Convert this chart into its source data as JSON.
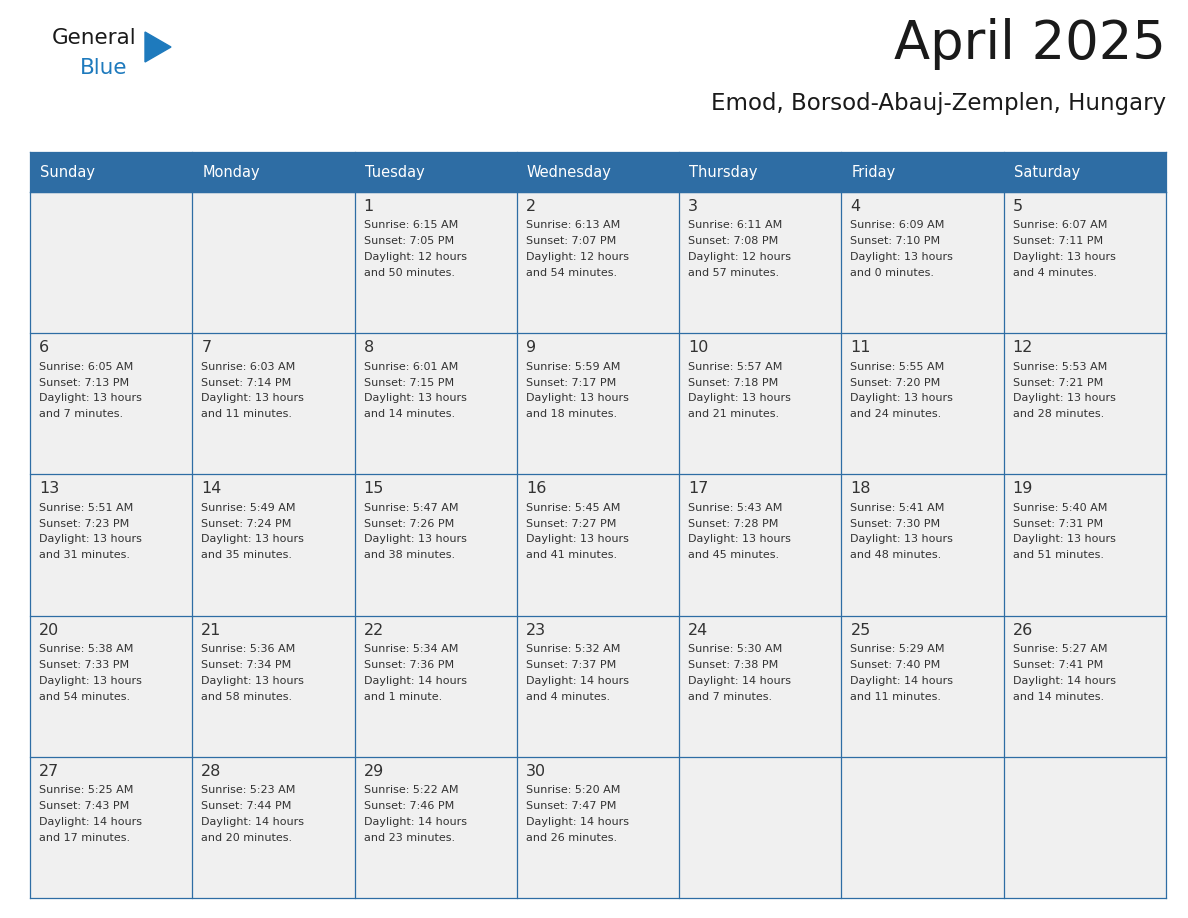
{
  "title": "April 2025",
  "subtitle": "Emod, Borsod-Abauj-Zemplen, Hungary",
  "header_bg_color": "#2e6da4",
  "header_text_color": "#ffffff",
  "cell_bg_color": "#f0f0f0",
  "title_color": "#1a1a1a",
  "subtitle_color": "#1a1a1a",
  "day_names": [
    "Sunday",
    "Monday",
    "Tuesday",
    "Wednesday",
    "Thursday",
    "Friday",
    "Saturday"
  ],
  "days": [
    {
      "day": 1,
      "col": 2,
      "row": 0,
      "sunrise": "6:15 AM",
      "sunset": "7:05 PM",
      "daylight_hrs": "12",
      "daylight_min": "50 minutes"
    },
    {
      "day": 2,
      "col": 3,
      "row": 0,
      "sunrise": "6:13 AM",
      "sunset": "7:07 PM",
      "daylight_hrs": "12",
      "daylight_min": "54 minutes"
    },
    {
      "day": 3,
      "col": 4,
      "row": 0,
      "sunrise": "6:11 AM",
      "sunset": "7:08 PM",
      "daylight_hrs": "12",
      "daylight_min": "57 minutes"
    },
    {
      "day": 4,
      "col": 5,
      "row": 0,
      "sunrise": "6:09 AM",
      "sunset": "7:10 PM",
      "daylight_hrs": "13",
      "daylight_min": "0 minutes"
    },
    {
      "day": 5,
      "col": 6,
      "row": 0,
      "sunrise": "6:07 AM",
      "sunset": "7:11 PM",
      "daylight_hrs": "13",
      "daylight_min": "4 minutes"
    },
    {
      "day": 6,
      "col": 0,
      "row": 1,
      "sunrise": "6:05 AM",
      "sunset": "7:13 PM",
      "daylight_hrs": "13",
      "daylight_min": "7 minutes"
    },
    {
      "day": 7,
      "col": 1,
      "row": 1,
      "sunrise": "6:03 AM",
      "sunset": "7:14 PM",
      "daylight_hrs": "13",
      "daylight_min": "11 minutes"
    },
    {
      "day": 8,
      "col": 2,
      "row": 1,
      "sunrise": "6:01 AM",
      "sunset": "7:15 PM",
      "daylight_hrs": "13",
      "daylight_min": "14 minutes"
    },
    {
      "day": 9,
      "col": 3,
      "row": 1,
      "sunrise": "5:59 AM",
      "sunset": "7:17 PM",
      "daylight_hrs": "13",
      "daylight_min": "18 minutes"
    },
    {
      "day": 10,
      "col": 4,
      "row": 1,
      "sunrise": "5:57 AM",
      "sunset": "7:18 PM",
      "daylight_hrs": "13",
      "daylight_min": "21 minutes"
    },
    {
      "day": 11,
      "col": 5,
      "row": 1,
      "sunrise": "5:55 AM",
      "sunset": "7:20 PM",
      "daylight_hrs": "13",
      "daylight_min": "24 minutes"
    },
    {
      "day": 12,
      "col": 6,
      "row": 1,
      "sunrise": "5:53 AM",
      "sunset": "7:21 PM",
      "daylight_hrs": "13",
      "daylight_min": "28 minutes"
    },
    {
      "day": 13,
      "col": 0,
      "row": 2,
      "sunrise": "5:51 AM",
      "sunset": "7:23 PM",
      "daylight_hrs": "13",
      "daylight_min": "31 minutes"
    },
    {
      "day": 14,
      "col": 1,
      "row": 2,
      "sunrise": "5:49 AM",
      "sunset": "7:24 PM",
      "daylight_hrs": "13",
      "daylight_min": "35 minutes"
    },
    {
      "day": 15,
      "col": 2,
      "row": 2,
      "sunrise": "5:47 AM",
      "sunset": "7:26 PM",
      "daylight_hrs": "13",
      "daylight_min": "38 minutes"
    },
    {
      "day": 16,
      "col": 3,
      "row": 2,
      "sunrise": "5:45 AM",
      "sunset": "7:27 PM",
      "daylight_hrs": "13",
      "daylight_min": "41 minutes"
    },
    {
      "day": 17,
      "col": 4,
      "row": 2,
      "sunrise": "5:43 AM",
      "sunset": "7:28 PM",
      "daylight_hrs": "13",
      "daylight_min": "45 minutes"
    },
    {
      "day": 18,
      "col": 5,
      "row": 2,
      "sunrise": "5:41 AM",
      "sunset": "7:30 PM",
      "daylight_hrs": "13",
      "daylight_min": "48 minutes"
    },
    {
      "day": 19,
      "col": 6,
      "row": 2,
      "sunrise": "5:40 AM",
      "sunset": "7:31 PM",
      "daylight_hrs": "13",
      "daylight_min": "51 minutes"
    },
    {
      "day": 20,
      "col": 0,
      "row": 3,
      "sunrise": "5:38 AM",
      "sunset": "7:33 PM",
      "daylight_hrs": "13",
      "daylight_min": "54 minutes"
    },
    {
      "day": 21,
      "col": 1,
      "row": 3,
      "sunrise": "5:36 AM",
      "sunset": "7:34 PM",
      "daylight_hrs": "13",
      "daylight_min": "58 minutes"
    },
    {
      "day": 22,
      "col": 2,
      "row": 3,
      "sunrise": "5:34 AM",
      "sunset": "7:36 PM",
      "daylight_hrs": "14",
      "daylight_min": "1 minute"
    },
    {
      "day": 23,
      "col": 3,
      "row": 3,
      "sunrise": "5:32 AM",
      "sunset": "7:37 PM",
      "daylight_hrs": "14",
      "daylight_min": "4 minutes"
    },
    {
      "day": 24,
      "col": 4,
      "row": 3,
      "sunrise": "5:30 AM",
      "sunset": "7:38 PM",
      "daylight_hrs": "14",
      "daylight_min": "7 minutes"
    },
    {
      "day": 25,
      "col": 5,
      "row": 3,
      "sunrise": "5:29 AM",
      "sunset": "7:40 PM",
      "daylight_hrs": "14",
      "daylight_min": "11 minutes"
    },
    {
      "day": 26,
      "col": 6,
      "row": 3,
      "sunrise": "5:27 AM",
      "sunset": "7:41 PM",
      "daylight_hrs": "14",
      "daylight_min": "14 minutes"
    },
    {
      "day": 27,
      "col": 0,
      "row": 4,
      "sunrise": "5:25 AM",
      "sunset": "7:43 PM",
      "daylight_hrs": "14",
      "daylight_min": "17 minutes"
    },
    {
      "day": 28,
      "col": 1,
      "row": 4,
      "sunrise": "5:23 AM",
      "sunset": "7:44 PM",
      "daylight_hrs": "14",
      "daylight_min": "20 minutes"
    },
    {
      "day": 29,
      "col": 2,
      "row": 4,
      "sunrise": "5:22 AM",
      "sunset": "7:46 PM",
      "daylight_hrs": "14",
      "daylight_min": "23 minutes"
    },
    {
      "day": 30,
      "col": 3,
      "row": 4,
      "sunrise": "5:20 AM",
      "sunset": "7:47 PM",
      "daylight_hrs": "14",
      "daylight_min": "26 minutes"
    }
  ],
  "logo_color_general": "#1a1a1a",
  "logo_color_blue": "#1e7abd",
  "logo_triangle_color": "#1e7abd",
  "border_color": "#2e6da4",
  "text_color": "#333333",
  "num_rows": 5,
  "num_cols": 7
}
